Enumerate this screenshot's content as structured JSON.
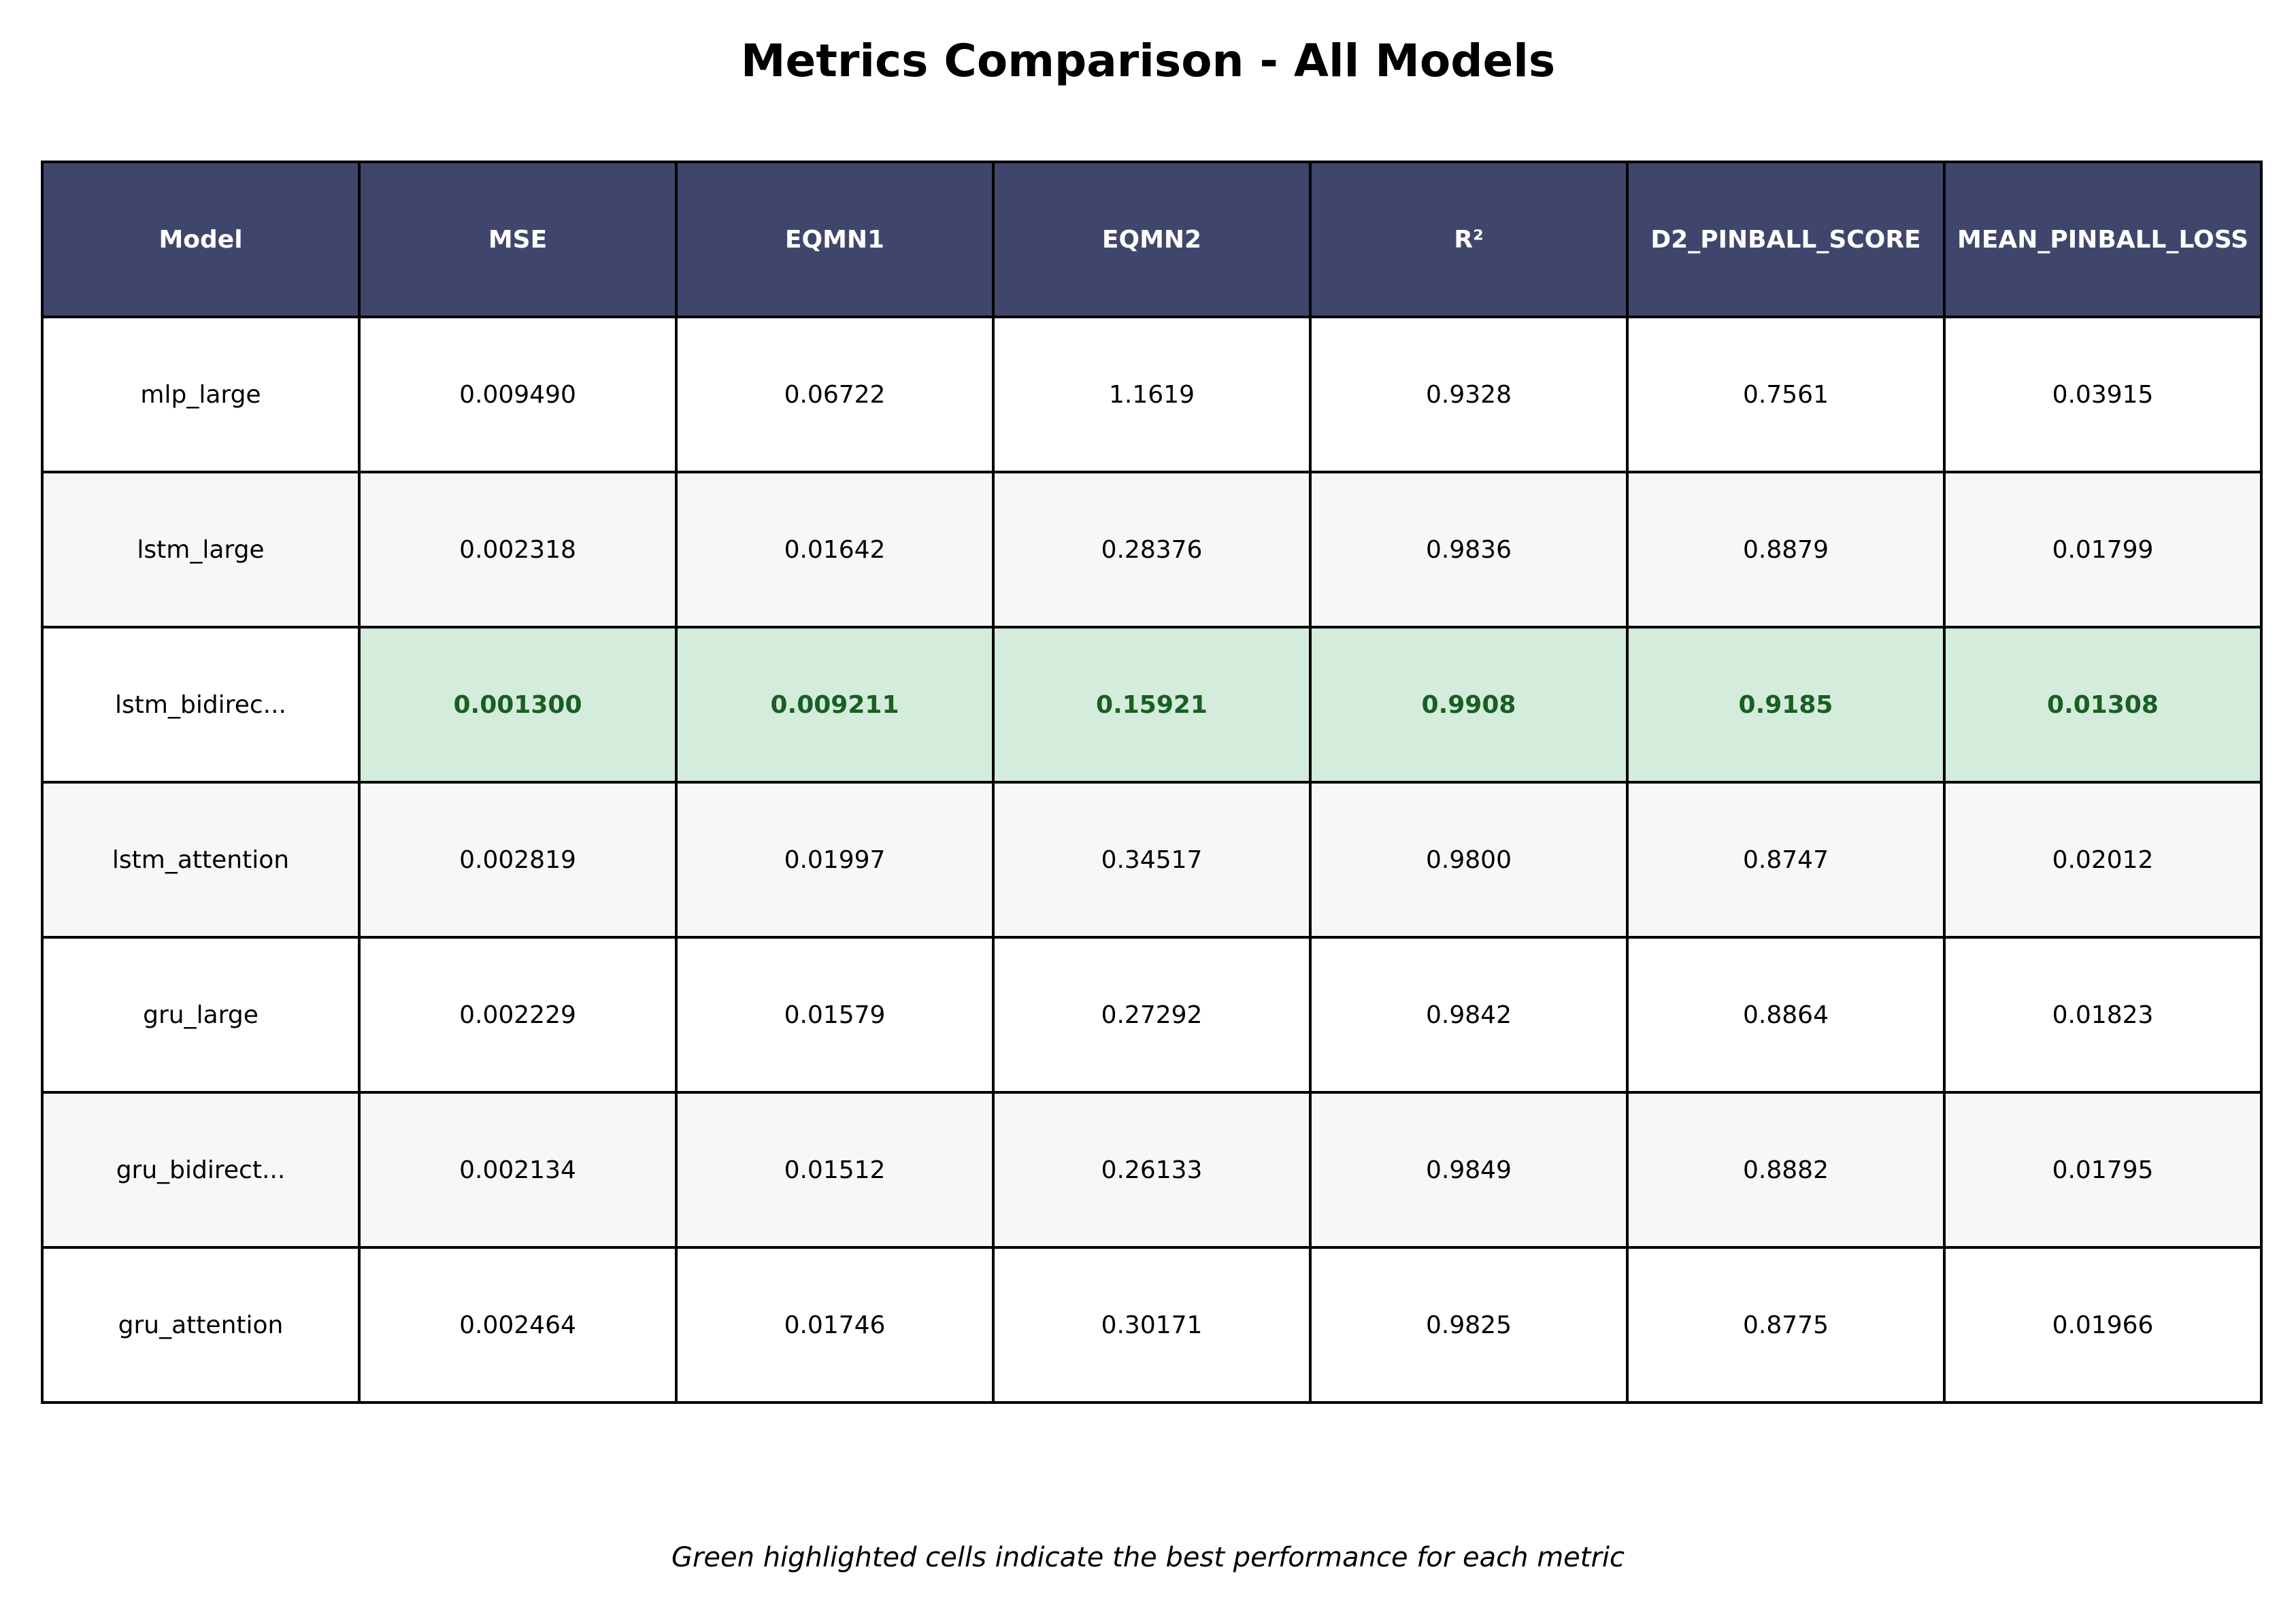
{
  "chart_data": {
    "type": "table",
    "title": "Metrics Comparison - All Models",
    "columns": [
      "Model",
      "MSE",
      "EQMN1",
      "EQMN2",
      "R²",
      "D2_PINBALL_SCORE",
      "MEAN_PINBALL_LOSS"
    ],
    "rows": [
      {
        "model": "mlp_large",
        "values": [
          "0.009490",
          "0.06722",
          "1.1619",
          "0.9328",
          "0.7561",
          "0.03915"
        ]
      },
      {
        "model": "lstm_large",
        "values": [
          "0.002318",
          "0.01642",
          "0.28376",
          "0.9836",
          "0.8879",
          "0.01799"
        ]
      },
      {
        "model": "lstm_bidirec...",
        "values": [
          "0.001300",
          "0.009211",
          "0.15921",
          "0.9908",
          "0.9185",
          "0.01308"
        ]
      },
      {
        "model": "lstm_attention",
        "values": [
          "0.002819",
          "0.01997",
          "0.34517",
          "0.9800",
          "0.8747",
          "0.02012"
        ]
      },
      {
        "model": "gru_large",
        "values": [
          "0.002229",
          "0.01579",
          "0.27292",
          "0.9842",
          "0.8864",
          "0.01823"
        ]
      },
      {
        "model": "gru_bidirect...",
        "values": [
          "0.002134",
          "0.01512",
          "0.26133",
          "0.9849",
          "0.8882",
          "0.01795"
        ]
      },
      {
        "model": "gru_attention",
        "values": [
          "0.002464",
          "0.01746",
          "0.30171",
          "0.9825",
          "0.8775",
          "0.01966"
        ]
      }
    ],
    "best_row_index": 2,
    "footnote": "Green highlighted cells indicate the best performance for each metric"
  },
  "colors": {
    "header_bg": "#40466b",
    "header_text": "#ffffff",
    "alt_row_bg": "#f6f7f9",
    "best_cell_bg": "#d4ecdb",
    "best_cell_text": "#195f23"
  }
}
